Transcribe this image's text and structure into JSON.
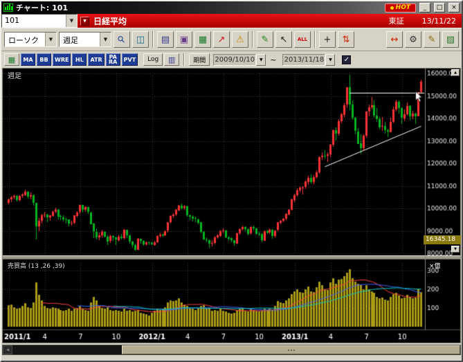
{
  "glyphs": {
    "dropdown": "▼",
    "up": "▲",
    "down": "▼",
    "left": "◀",
    "check": "✓"
  },
  "window": {
    "title": "チャート: 101",
    "hot": "HOT",
    "minimize": "_",
    "maximize": "□",
    "close": "×"
  },
  "header": {
    "symbol_code": "101",
    "symbol_name": "日経平均",
    "exchange": "東証",
    "date": "13/11/22"
  },
  "toolbar": {
    "chart_type": "ローソク",
    "timeframe": "週足",
    "icons": [
      {
        "name": "zoom-in",
        "glyph": "⚲",
        "color": "#14408c",
        "rot": -45
      },
      {
        "name": "chart-window",
        "glyph": "◫",
        "color": "#0a6a8a"
      },
      {
        "sep": true
      },
      {
        "name": "save-chart",
        "glyph": "▤",
        "color": "#333a8c"
      },
      {
        "name": "capture",
        "glyph": "▣",
        "color": "#6a3a8c"
      },
      {
        "name": "data-table",
        "glyph": "▦",
        "color": "#1a7a2a"
      },
      {
        "name": "trend-signal",
        "glyph": "↗",
        "color": "#cc1111"
      },
      {
        "name": "alert",
        "glyph": "⚠",
        "color": "#c08a00"
      },
      {
        "sep": true
      },
      {
        "name": "draw-pencil",
        "glyph": "✎",
        "color": "#1a8a1a"
      },
      {
        "name": "select-cursor",
        "glyph": "↖",
        "color": "#222222"
      },
      {
        "name": "clear-all",
        "glyph": "ALL",
        "color": "#cc0000",
        "small": true
      },
      {
        "sep": true
      },
      {
        "name": "crosshair",
        "glyph": "+",
        "color": "#222222"
      },
      {
        "name": "updown-arrows",
        "glyph": "⇅",
        "color": "#cc2200"
      },
      {
        "spacer": true
      },
      {
        "name": "expand-range",
        "glyph": "↔",
        "color": "#cc2200"
      },
      {
        "name": "settings-gear",
        "glyph": "⚙",
        "color": "#333333"
      },
      {
        "name": "pen-color",
        "glyph": "✎",
        "color": "#8a6a00"
      },
      {
        "name": "chart-style",
        "glyph": "▧",
        "color": "#2a7a2a"
      }
    ]
  },
  "toolbar2": {
    "list_button_glyph": "▦",
    "indicators": [
      "MA",
      "BB",
      "WRE",
      "HL",
      "ATR",
      "PA\nRA",
      "PVT"
    ],
    "log_label": "Log",
    "scale_button_glyph": "▥",
    "period_label": "期間",
    "date_from": "2009/10/10",
    "tilde": "~",
    "date_to": "2013/11/18",
    "checkbox_checked": true
  },
  "chart_data": {
    "type": "candlestick",
    "instrument": "日経平均",
    "panel_label": "週足",
    "volume_label": "売買高 (13 ,26 ,39)",
    "volume_unit": "×億",
    "price_marker": "16345.18",
    "y_axis": {
      "min": 8000,
      "max": 16000,
      "step": 1000,
      "labels": [
        "16000.00",
        "15000.00",
        "14000.00",
        "13000.00",
        "12000.00",
        "11000.00",
        "10000.00",
        "9000.00",
        "8000.00"
      ]
    },
    "volume_axis": {
      "ticks": [
        300,
        200,
        100
      ],
      "labels": [
        "300",
        "200",
        "100"
      ],
      "scale_max": 340
    },
    "x_ticks": [
      {
        "label": "2011/1",
        "i": 0
      },
      {
        "label": "4",
        "i": 13
      },
      {
        "label": "7",
        "i": 26
      },
      {
        "label": "10",
        "i": 39
      },
      {
        "label": "2012/1",
        "i": 52
      },
      {
        "label": "4",
        "i": 65
      },
      {
        "label": "7",
        "i": 78
      },
      {
        "label": "10",
        "i": 91
      },
      {
        "label": "2013/1",
        "i": 104
      },
      {
        "label": "4",
        "i": 117
      },
      {
        "label": "7",
        "i": 130
      },
      {
        "label": "10",
        "i": 143
      }
    ],
    "ma_windows": [
      13,
      26,
      39
    ],
    "colors": {
      "up": "#ff3232",
      "down": "#00b41e",
      "volume": "#ab9c14",
      "vol_ma1": "#ff4040",
      "vol_ma2": "#3c64ff",
      "vol_ma3": "#00c8c8",
      "grid": "#3f3f3f",
      "axis_text": "#e8e8e8",
      "line": "#ffffff"
    },
    "trendline": {
      "from": [
        115,
        11850
      ],
      "to": [
        150,
        13650
      ]
    },
    "resistance": {
      "price": 15150,
      "from_index": 124
    },
    "cursor": {
      "index": 148,
      "price": 15200
    },
    "candles": [
      [
        10250,
        10430,
        10180,
        10400
      ],
      [
        10400,
        10550,
        10280,
        10500
      ],
      [
        10500,
        10620,
        10400,
        10550
      ],
      [
        10550,
        10580,
        10300,
        10360
      ],
      [
        10360,
        10580,
        10310,
        10540
      ],
      [
        10540,
        10680,
        10450,
        10610
      ],
      [
        10610,
        10840,
        10570,
        10750
      ],
      [
        10750,
        10780,
        10450,
        10530
      ],
      [
        10530,
        10700,
        10400,
        10580
      ],
      [
        10580,
        10620,
        10140,
        10250
      ],
      [
        10250,
        10260,
        8620,
        9210
      ],
      [
        9210,
        9560,
        8980,
        9450
      ],
      [
        9450,
        9750,
        9320,
        9700
      ],
      [
        9700,
        9850,
        9590,
        9710
      ],
      [
        9710,
        9760,
        9400,
        9600
      ],
      [
        9600,
        9700,
        9440,
        9680
      ],
      [
        9680,
        9900,
        9610,
        9850
      ],
      [
        9850,
        10020,
        9780,
        9950
      ],
      [
        9950,
        9980,
        9530,
        9650
      ],
      [
        9650,
        9730,
        9480,
        9610
      ],
      [
        9610,
        9680,
        9400,
        9520
      ],
      [
        9520,
        9590,
        9320,
        9500
      ],
      [
        9500,
        9520,
        9200,
        9330
      ],
      [
        9330,
        9450,
        9230,
        9350
      ],
      [
        9350,
        9700,
        9310,
        9680
      ],
      [
        9680,
        9870,
        9580,
        9820
      ],
      [
        9820,
        10160,
        9760,
        10140
      ],
      [
        10140,
        10150,
        9800,
        9930
      ],
      [
        9930,
        10090,
        9830,
        10050
      ],
      [
        10050,
        10070,
        9750,
        9830
      ],
      [
        9830,
        9840,
        9280,
        9310
      ],
      [
        9310,
        9340,
        8650,
        8960
      ],
      [
        8960,
        9100,
        8620,
        8720
      ],
      [
        8720,
        8930,
        8590,
        8800
      ],
      [
        8800,
        9040,
        8710,
        8950
      ],
      [
        8950,
        8970,
        8680,
        8740
      ],
      [
        8740,
        8790,
        8360,
        8540
      ],
      [
        8540,
        8820,
        8450,
        8770
      ],
      [
        8770,
        8800,
        8560,
        8700
      ],
      [
        8700,
        8740,
        8360,
        8600
      ],
      [
        8600,
        8840,
        8530,
        8750
      ],
      [
        8750,
        8860,
        8610,
        8680
      ],
      [
        8680,
        9090,
        8640,
        9050
      ],
      [
        9050,
        9060,
        8680,
        8800
      ],
      [
        8800,
        8820,
        8420,
        8510
      ],
      [
        8510,
        8560,
        8240,
        8370
      ],
      [
        8370,
        8420,
        8100,
        8160
      ],
      [
        8160,
        8680,
        8150,
        8640
      ],
      [
        8640,
        8660,
        8430,
        8540
      ],
      [
        8540,
        8590,
        8330,
        8400
      ],
      [
        8400,
        8520,
        8340,
        8480
      ],
      [
        8480,
        8530,
        8390,
        8450
      ],
      [
        8450,
        8510,
        8350,
        8390
      ],
      [
        8390,
        8550,
        8340,
        8500
      ],
      [
        8500,
        8790,
        8460,
        8770
      ],
      [
        8770,
        8910,
        8700,
        8840
      ],
      [
        8840,
        8880,
        8720,
        8830
      ],
      [
        8830,
        9030,
        8780,
        9000
      ],
      [
        9000,
        9400,
        8950,
        9380
      ],
      [
        9380,
        9690,
        9330,
        9650
      ],
      [
        9650,
        9780,
        9560,
        9720
      ],
      [
        9720,
        9970,
        9660,
        9930
      ],
      [
        9930,
        10160,
        9870,
        10130
      ],
      [
        10130,
        10220,
        9940,
        10010
      ],
      [
        10010,
        10140,
        9920,
        10080
      ],
      [
        10080,
        10110,
        9610,
        9690
      ],
      [
        9690,
        9720,
        9470,
        9640
      ],
      [
        9640,
        9690,
        9420,
        9560
      ],
      [
        9560,
        9620,
        9380,
        9520
      ],
      [
        9520,
        9540,
        9280,
        9380
      ],
      [
        9380,
        9400,
        8900,
        8950
      ],
      [
        8950,
        8970,
        8560,
        8610
      ],
      [
        8610,
        8700,
        8480,
        8580
      ],
      [
        8580,
        8610,
        8240,
        8440
      ],
      [
        8440,
        8570,
        8290,
        8460
      ],
      [
        8460,
        8760,
        8400,
        8720
      ],
      [
        8720,
        8850,
        8640,
        8800
      ],
      [
        8800,
        9040,
        8730,
        9000
      ],
      [
        9000,
        9110,
        8890,
        9020
      ],
      [
        9020,
        9050,
        8690,
        8720
      ],
      [
        8720,
        8780,
        8560,
        8670
      ],
      [
        8670,
        8710,
        8510,
        8570
      ],
      [
        8570,
        8590,
        8330,
        8440
      ],
      [
        8440,
        8920,
        8420,
        8890
      ],
      [
        8890,
        9110,
        8820,
        9070
      ],
      [
        9070,
        9230,
        9000,
        9170
      ],
      [
        9170,
        9190,
        8980,
        9070
      ],
      [
        9070,
        9100,
        8800,
        8870
      ],
      [
        8870,
        9190,
        8820,
        9160
      ],
      [
        9160,
        9240,
        9040,
        9110
      ],
      [
        9110,
        9140,
        8830,
        8870
      ],
      [
        8870,
        8950,
        8770,
        8860
      ],
      [
        8860,
        8880,
        8490,
        8580
      ],
      [
        8580,
        9030,
        8560,
        9000
      ],
      [
        9000,
        9060,
        8870,
        8930
      ],
      [
        8930,
        9100,
        8860,
        9050
      ],
      [
        9050,
        9080,
        8660,
        8760
      ],
      [
        8760,
        9030,
        8720,
        9020
      ],
      [
        9020,
        9390,
        8990,
        9370
      ],
      [
        9370,
        9480,
        9300,
        9450
      ],
      [
        9450,
        9560,
        9380,
        9530
      ],
      [
        9530,
        9790,
        9480,
        9740
      ],
      [
        9740,
        9960,
        9680,
        9940
      ],
      [
        9940,
        10430,
        9900,
        10400
      ],
      [
        10400,
        10660,
        10300,
        10600
      ],
      [
        10600,
        10880,
        10500,
        10800
      ],
      [
        10800,
        10970,
        10690,
        10910
      ],
      [
        10910,
        11000,
        10620,
        10930
      ],
      [
        10930,
        11230,
        10860,
        11190
      ],
      [
        11190,
        11450,
        11050,
        11360
      ],
      [
        11360,
        11500,
        11100,
        11170
      ],
      [
        11170,
        11480,
        11070,
        11390
      ],
      [
        11390,
        11680,
        11300,
        11610
      ],
      [
        11610,
        12320,
        11560,
        12280
      ],
      [
        12280,
        12480,
        12130,
        12340
      ],
      [
        12340,
        12570,
        12190,
        12330
      ],
      [
        12330,
        12490,
        12060,
        12400
      ],
      [
        12400,
        12870,
        12300,
        12830
      ],
      [
        12830,
        13520,
        12760,
        13480
      ],
      [
        13480,
        13590,
        13000,
        13320
      ],
      [
        13320,
        13980,
        13250,
        13880
      ],
      [
        13880,
        14250,
        13800,
        14180
      ],
      [
        14180,
        14690,
        14050,
        14600
      ],
      [
        14600,
        15400,
        14480,
        15380
      ],
      [
        15380,
        15940,
        14370,
        14612
      ],
      [
        14612,
        14800,
        13930,
        14027
      ],
      [
        14027,
        14070,
        13290,
        13430
      ],
      [
        13430,
        13560,
        12860,
        12880
      ],
      [
        12880,
        13290,
        12420,
        12670
      ],
      [
        12670,
        13290,
        12550,
        13230
      ],
      [
        13230,
        14320,
        13160,
        14310
      ],
      [
        14310,
        14620,
        14110,
        14506
      ],
      [
        14506,
        14960,
        14420,
        14590
      ],
      [
        14590,
        14810,
        14030,
        14130
      ],
      [
        14130,
        14470,
        13870,
        13980
      ],
      [
        13980,
        14070,
        13530,
        13615
      ],
      [
        13615,
        14050,
        13420,
        13650
      ],
      [
        13650,
        13840,
        13320,
        13465
      ],
      [
        13465,
        13550,
        13190,
        13389
      ],
      [
        13389,
        14020,
        13360,
        13860
      ],
      [
        13860,
        14530,
        13800,
        14405
      ],
      [
        14405,
        14820,
        14290,
        14742
      ],
      [
        14742,
        14800,
        14210,
        14456
      ],
      [
        14456,
        14490,
        13750,
        14024
      ],
      [
        14024,
        14400,
        13880,
        14194
      ],
      [
        14194,
        14700,
        14110,
        14562
      ],
      [
        14562,
        14580,
        13900,
        14088
      ],
      [
        14088,
        14350,
        13990,
        14202
      ],
      [
        14202,
        14250,
        13750,
        14087
      ],
      [
        14087,
        15170,
        14080,
        15165
      ],
      [
        15165,
        15710,
        15090,
        15640
      ]
    ],
    "volumes": [
      115,
      120,
      105,
      95,
      100,
      110,
      125,
      105,
      100,
      130,
      235,
      170,
      140,
      110,
      100,
      95,
      105,
      100,
      95,
      90,
      85,
      90,
      95,
      85,
      95,
      100,
      110,
      95,
      90,
      85,
      130,
      160,
      140,
      110,
      100,
      95,
      105,
      90,
      85,
      90,
      85,
      80,
      95,
      85,
      90,
      80,
      85,
      90,
      75,
      70,
      65,
      60,
      75,
      85,
      95,
      90,
      95,
      105,
      130,
      140,
      135,
      140,
      150,
      130,
      120,
      110,
      100,
      95,
      90,
      100,
      110,
      115,
      95,
      100,
      85,
      90,
      85,
      95,
      85,
      80,
      75,
      70,
      75,
      90,
      95,
      100,
      85,
      80,
      95,
      90,
      85,
      80,
      85,
      95,
      90,
      95,
      90,
      110,
      135,
      130,
      125,
      140,
      150,
      175,
      190,
      200,
      185,
      180,
      200,
      215,
      190,
      185,
      210,
      240,
      220,
      200,
      195,
      235,
      260,
      230,
      250,
      255,
      270,
      290,
      305,
      260,
      240,
      230,
      220,
      200,
      220,
      200,
      190,
      180,
      160,
      150,
      155,
      145,
      140,
      160,
      175,
      180,
      165,
      150,
      155,
      170,
      160,
      150,
      155,
      200,
      185
    ]
  }
}
